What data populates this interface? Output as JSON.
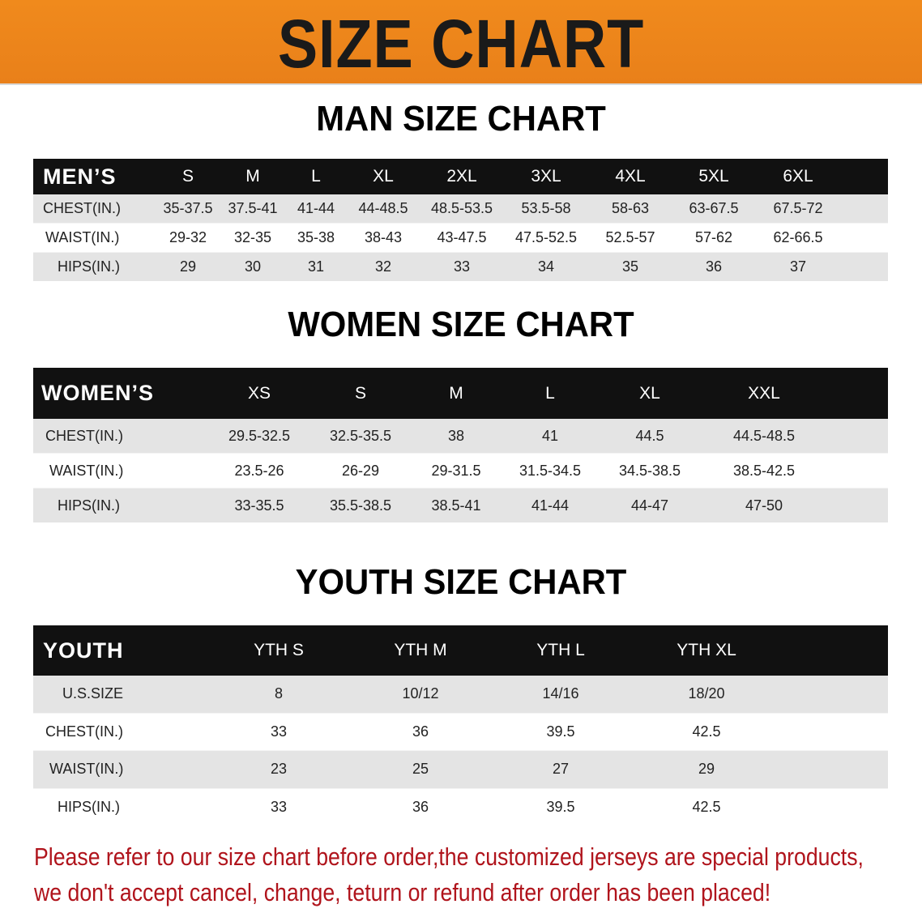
{
  "banner_title": "SIZE CHART",
  "men": {
    "title": "MAN SIZE CHART",
    "header": "MEN’S",
    "sizes": [
      "S",
      "M",
      "L",
      "XL",
      "2XL",
      "3XL",
      "4XL",
      "5XL",
      "6XL"
    ],
    "rows": [
      {
        "label": "CHEST(IN.)",
        "values": [
          "35-37.5",
          "37.5-41",
          "41-44",
          "44-48.5",
          "48.5-53.5",
          "53.5-58",
          "58-63",
          "63-67.5",
          "67.5-72"
        ]
      },
      {
        "label": "WAIST(IN.)",
        "values": [
          "29-32",
          "32-35",
          "35-38",
          "38-43",
          "43-47.5",
          "47.5-52.5",
          "52.5-57",
          "57-62",
          "62-66.5"
        ]
      },
      {
        "label": "HIPS(IN.)",
        "values": [
          "29",
          "30",
          "31",
          "32",
          "33",
          "34",
          "35",
          "36",
          "37"
        ]
      }
    ]
  },
  "women": {
    "title": "WOMEN SIZE CHART",
    "header": "WOMEN’S",
    "sizes": [
      "XS",
      "S",
      "M",
      "L",
      "XL",
      "XXL"
    ],
    "rows": [
      {
        "label": "CHEST(IN.)",
        "values": [
          "29.5-32.5",
          "32.5-35.5",
          "38",
          "41",
          "44.5",
          "44.5-48.5"
        ]
      },
      {
        "label": "WAIST(IN.)",
        "values": [
          "23.5-26",
          "26-29",
          "29-31.5",
          "31.5-34.5",
          "34.5-38.5",
          "38.5-42.5"
        ]
      },
      {
        "label": "HIPS(IN.)",
        "values": [
          "33-35.5",
          "35.5-38.5",
          "38.5-41",
          "41-44",
          "44-47",
          "47-50"
        ]
      }
    ]
  },
  "youth": {
    "title": "YOUTH SIZE CHART",
    "header": "YOUTH",
    "sizes": [
      "YTH S",
      "YTH M",
      "YTH L",
      "YTH XL"
    ],
    "rows": [
      {
        "label": "U.S.SIZE",
        "values": [
          "8",
          "10/12",
          "14/16",
          "18/20"
        ]
      },
      {
        "label": "CHEST(IN.)",
        "values": [
          "33",
          "36",
          "39.5",
          "42.5"
        ]
      },
      {
        "label": "WAIST(IN.)",
        "values": [
          "23",
          "25",
          "27",
          "29"
        ]
      },
      {
        "label": "HIPS(IN.)",
        "values": [
          "33",
          "36",
          "39.5",
          "42.5"
        ]
      }
    ]
  },
  "note": [
    "Please refer to our size chart before order,the customized jerseys are special products,",
    "we don't accept cancel, change, teturn or refund after order has been placed!"
  ],
  "colors": {
    "banner": "#ee861b",
    "header_bg": "#111111",
    "stripe": "#e4e4e4",
    "note": "#b0141c"
  }
}
